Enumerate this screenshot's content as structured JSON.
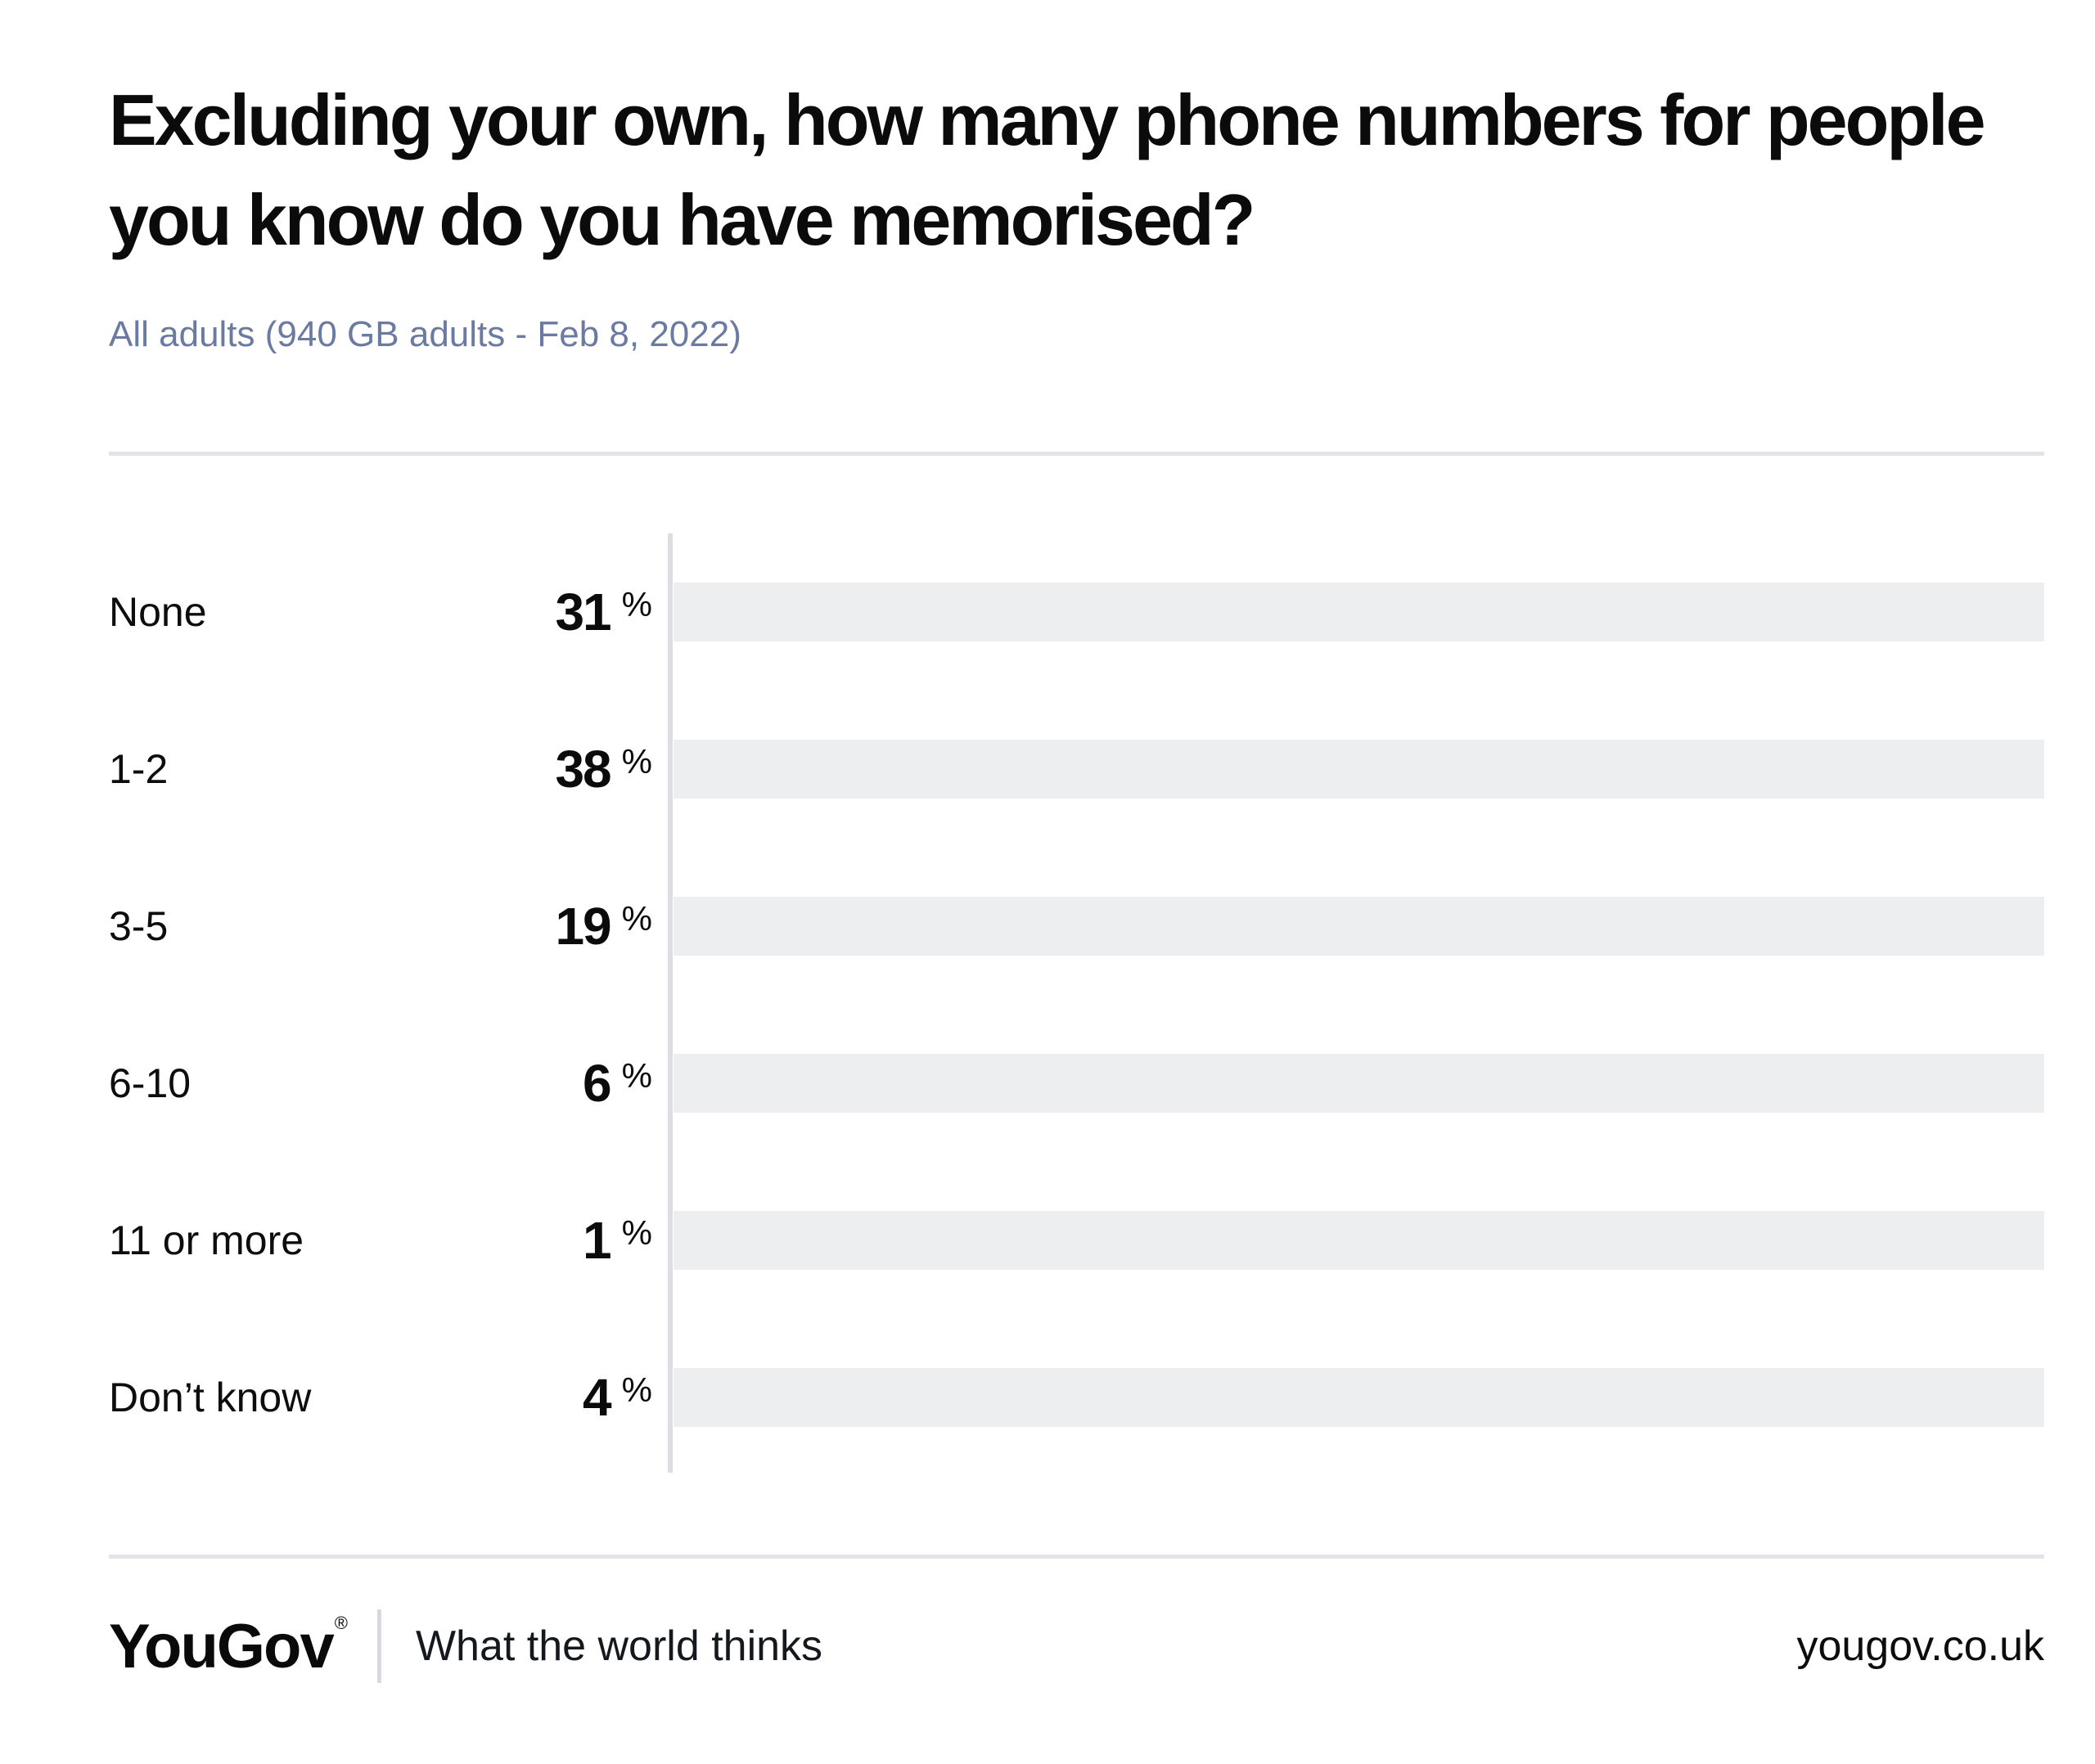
{
  "page": {
    "title": "Excluding your own, how many phone numbers for people you know do you have memorised?",
    "subtitle": "All adults (940 GB adults - Feb 8, 2022)"
  },
  "chart_data": {
    "type": "bar",
    "orientation": "horizontal",
    "title": "Excluding your own, how many phone numbers for people you know do you have memorised?",
    "subtitle": "All adults (940 GB adults - Feb 8, 2022)",
    "categories": [
      "None",
      "1-2",
      "3-5",
      "6-10",
      "11 or more",
      "Don’t know"
    ],
    "values": [
      31,
      38,
      19,
      6,
      1,
      4
    ],
    "unit": "%",
    "xlim": [
      0,
      100
    ],
    "grid": false,
    "legend": false,
    "value_label_position": "left-of-bar"
  },
  "colors": {
    "bar": "#fa6a55",
    "track": "#edeef0",
    "axis": "#dcdee4",
    "divider": "#e3e3e9",
    "subtitle": "#6b7aa0",
    "ink": "#0b0b0b"
  },
  "footer": {
    "logo": "YouGov",
    "registered_mark": "®",
    "tagline": "What the world thinks",
    "website": "yougov.co.uk"
  }
}
